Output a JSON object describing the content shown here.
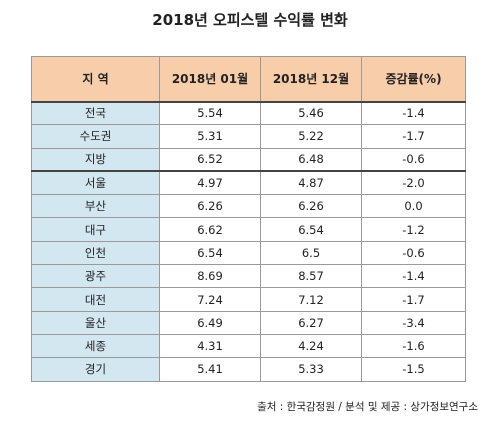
{
  "title": "2018년 오피스텔 수익률 변화",
  "table": {
    "headers": [
      "지 역",
      "2018년 01월",
      "2018년 12월",
      "증감률(%)"
    ],
    "rows": [
      {
        "region": "전국",
        "jan": "5.54",
        "dec": "5.46",
        "change": "-1.4"
      },
      {
        "region": "수도권",
        "jan": "5.31",
        "dec": "5.22",
        "change": "-1.7"
      },
      {
        "region": "지방",
        "jan": "6.52",
        "dec": "6.48",
        "change": "-0.6"
      },
      {
        "region": "서울",
        "jan": "4.97",
        "dec": "4.87",
        "change": "-2.0"
      },
      {
        "region": "부산",
        "jan": "6.26",
        "dec": "6.26",
        "change": "0.0"
      },
      {
        "region": "대구",
        "jan": "6.62",
        "dec": "6.54",
        "change": "-1.2"
      },
      {
        "region": "인천",
        "jan": "6.54",
        "dec": "6.5",
        "change": "-0.6"
      },
      {
        "region": "광주",
        "jan": "8.69",
        "dec": "8.57",
        "change": "-1.4"
      },
      {
        "region": "대전",
        "jan": "7.24",
        "dec": "7.12",
        "change": "-1.7"
      },
      {
        "region": "울산",
        "jan": "6.49",
        "dec": "6.27",
        "change": "-3.4"
      },
      {
        "region": "세종",
        "jan": "4.31",
        "dec": "4.24",
        "change": "-1.6"
      },
      {
        "region": "경기",
        "jan": "5.41",
        "dec": "5.33",
        "change": "-1.5"
      }
    ]
  },
  "source": "출처 : 한국감정원 / 분석 및 제공 : 상가정보연구소",
  "colors": {
    "header_bg": "#f8cdaa",
    "region_bg": "#d3e7f1"
  }
}
